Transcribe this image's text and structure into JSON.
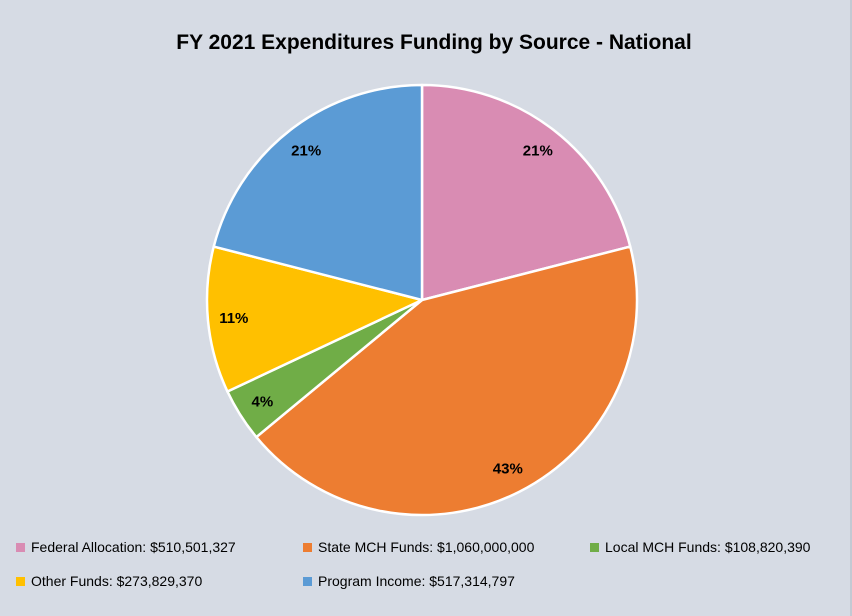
{
  "title": "FY 2021 Expenditures Funding by Source - National",
  "colors": {
    "background": "#D6DBE4",
    "slice_border": "#FFFFFF",
    "text": "#000000"
  },
  "chart_data": {
    "type": "pie",
    "title": "FY 2021 Expenditures Funding by Source - National",
    "start_angle_deg": 0,
    "direction": "clockwise",
    "legend_position": "bottom",
    "slices": [
      {
        "name": "Federal Allocation",
        "amount": "$510,501,327",
        "value": 510501327,
        "pct": 21,
        "data_label": "21%",
        "legend_text": "Federal Allocation: $510,501,327",
        "color": "#D98CB3"
      },
      {
        "name": "State MCH Funds",
        "amount": "$1,060,000,000",
        "value": 1060000000,
        "pct": 43,
        "data_label": "43%",
        "legend_text": "State MCH Funds: $1,060,000,000",
        "color": "#ED7D31"
      },
      {
        "name": "Local MCH Funds",
        "amount": "$108,820,390",
        "value": 108820390,
        "pct": 4,
        "data_label": "4%",
        "legend_text": "Local MCH Funds: $108,820,390",
        "color": "#70AD47"
      },
      {
        "name": "Other Funds",
        "amount": "$273,829,370",
        "value": 273829370,
        "pct": 11,
        "data_label": "11%",
        "legend_text": "Other Funds: $273,829,370",
        "color": "#FFC000"
      },
      {
        "name": "Program Income",
        "amount": "$517,314,797",
        "value": 517314797,
        "pct": 21,
        "data_label": "21%",
        "legend_text": "Program Income: $517,314,797",
        "color": "#5B9BD5"
      }
    ]
  }
}
